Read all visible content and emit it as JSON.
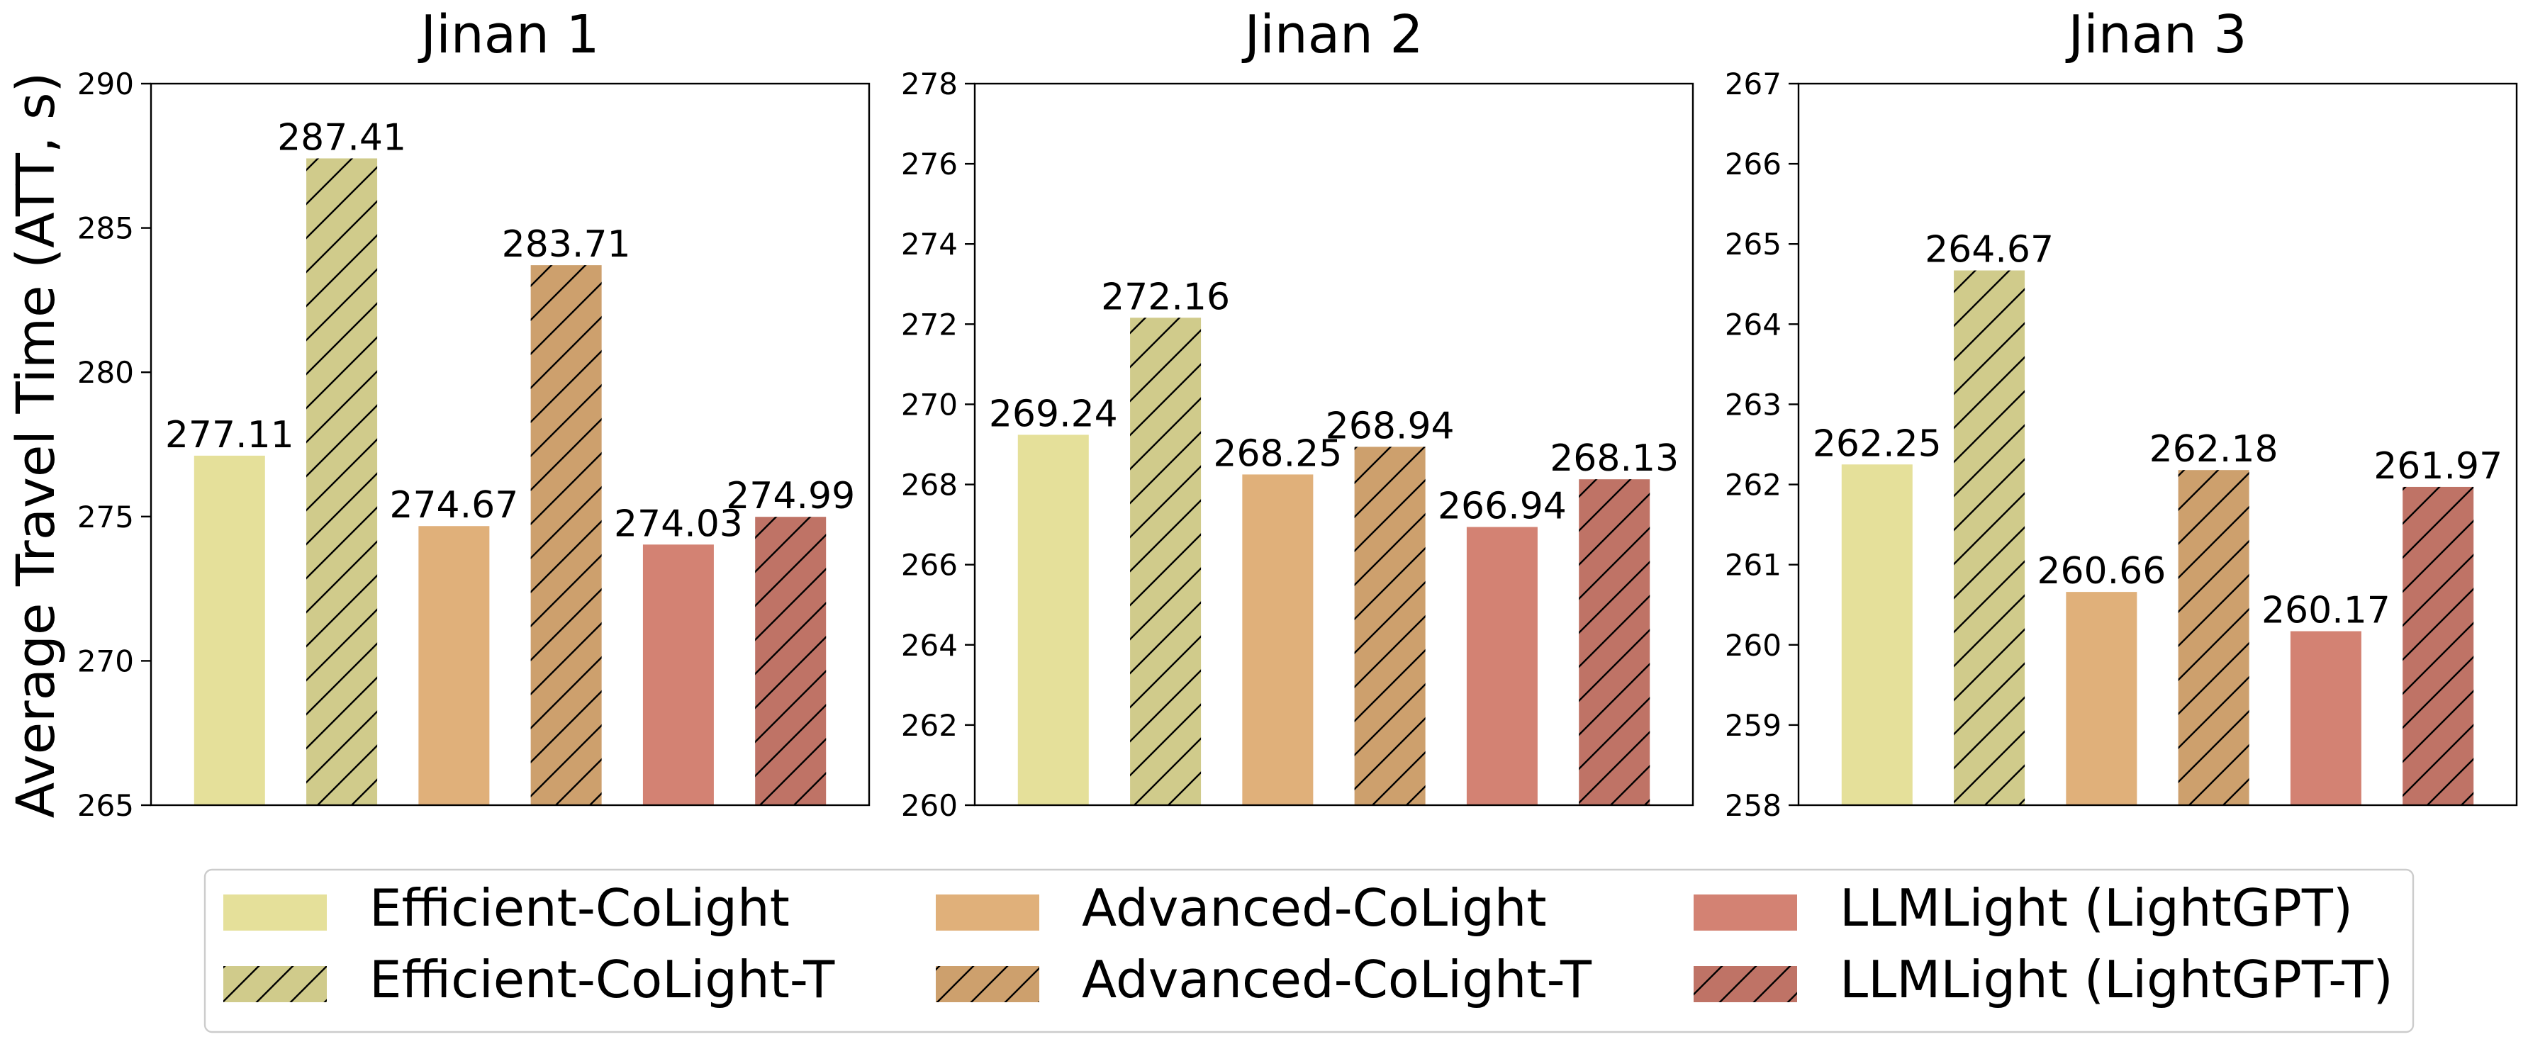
{
  "ylabel": "Average Travel Time (ATT, s)",
  "hatch_color": "#000000",
  "legend": {
    "placement": "bottom",
    "entries": [
      {
        "label": "Efficient-CoLight",
        "color": "#e5e09a",
        "hatched": false
      },
      {
        "label": "Efficient-CoLight-T",
        "color": "#d0cb8b",
        "hatched": true
      },
      {
        "label": "Advanced-CoLight",
        "color": "#e0b07a",
        "hatched": false
      },
      {
        "label": "Advanced-CoLight-T",
        "color": "#cda06d",
        "hatched": true
      },
      {
        "label": "LLMLight (LightGPT)",
        "color": "#d38273",
        "hatched": false
      },
      {
        "label": "LLMLight (LightGPT-T)",
        "color": "#bf7366",
        "hatched": true
      }
    ]
  },
  "chart_data": [
    {
      "type": "bar",
      "title": "Jinan 1",
      "ylabel": "Average Travel Time (ATT, s)",
      "ylim": [
        265,
        290
      ],
      "yticks": [
        265,
        270,
        275,
        280,
        285,
        290
      ],
      "grid": false,
      "series": [
        {
          "name": "Efficient-CoLight",
          "value": 277.11
        },
        {
          "name": "Efficient-CoLight-T",
          "value": 287.41
        },
        {
          "name": "Advanced-CoLight",
          "value": 274.67
        },
        {
          "name": "Advanced-CoLight-T",
          "value": 283.71
        },
        {
          "name": "LLMLight (LightGPT)",
          "value": 274.03
        },
        {
          "name": "LLMLight (LightGPT-T)",
          "value": 274.99
        }
      ]
    },
    {
      "type": "bar",
      "title": "Jinan 2",
      "ylim": [
        260,
        278
      ],
      "yticks": [
        260,
        262,
        264,
        266,
        268,
        270,
        272,
        274,
        276,
        278
      ],
      "grid": false,
      "series": [
        {
          "name": "Efficient-CoLight",
          "value": 269.24
        },
        {
          "name": "Efficient-CoLight-T",
          "value": 272.16
        },
        {
          "name": "Advanced-CoLight",
          "value": 268.25
        },
        {
          "name": "Advanced-CoLight-T",
          "value": 268.94
        },
        {
          "name": "LLMLight (LightGPT)",
          "value": 266.94
        },
        {
          "name": "LLMLight (LightGPT-T)",
          "value": 268.13
        }
      ]
    },
    {
      "type": "bar",
      "title": "Jinan 3",
      "ylim": [
        258,
        267
      ],
      "yticks": [
        258,
        259,
        260,
        261,
        262,
        263,
        264,
        265,
        266,
        267
      ],
      "grid": false,
      "series": [
        {
          "name": "Efficient-CoLight",
          "value": 262.25
        },
        {
          "name": "Efficient-CoLight-T",
          "value": 264.67
        },
        {
          "name": "Advanced-CoLight",
          "value": 260.66
        },
        {
          "name": "Advanced-CoLight-T",
          "value": 262.18
        },
        {
          "name": "LLMLight (LightGPT)",
          "value": 260.17
        },
        {
          "name": "LLMLight (LightGPT-T)",
          "value": 261.97
        }
      ]
    }
  ]
}
